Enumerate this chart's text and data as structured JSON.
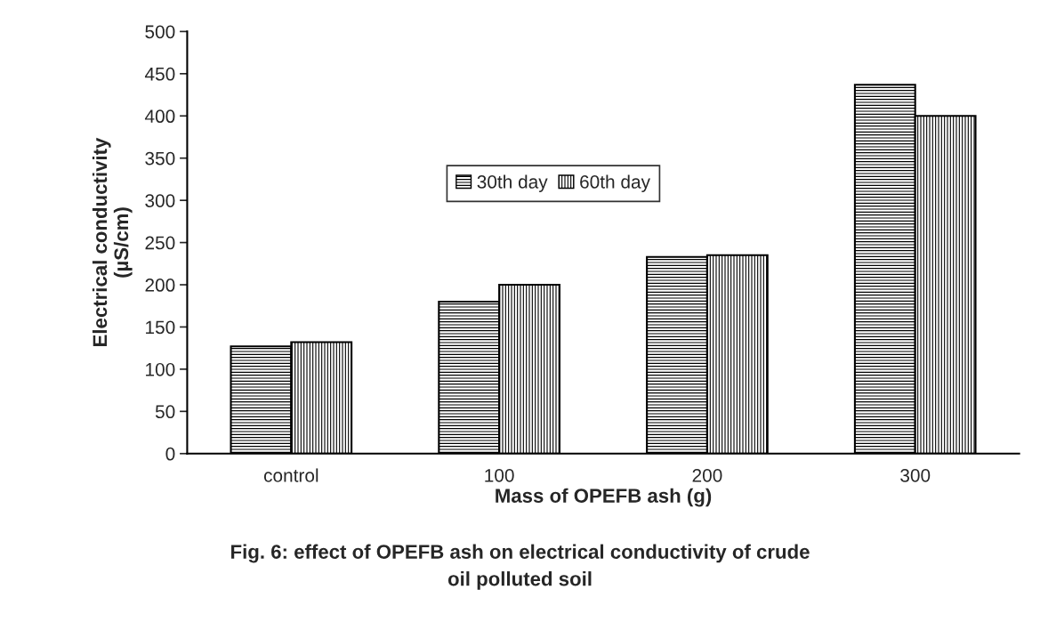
{
  "chart_data": {
    "type": "bar",
    "xlabel": "Mass of OPEFB ash (g)",
    "ylabel": "Electrical conductivity\n(µS/cm)",
    "categories": [
      "control",
      "100",
      "200",
      "300"
    ],
    "series": [
      {
        "name": "30th day",
        "color": "#000000",
        "values": [
          127,
          180,
          233,
          437
        ]
      },
      {
        "name": "60th day",
        "color": "#000000",
        "values": [
          132,
          200,
          235,
          400
        ]
      }
    ],
    "ylim": [
      0,
      500
    ],
    "yticks": [
      0,
      50,
      100,
      150,
      200,
      250,
      300,
      350,
      400,
      450,
      500
    ],
    "grid": false,
    "legend": "center",
    "annotations": [
      "Fig. 6: effect of OPEFB ash on electrical conductivity of crude\noil polluted soil"
    ]
  }
}
